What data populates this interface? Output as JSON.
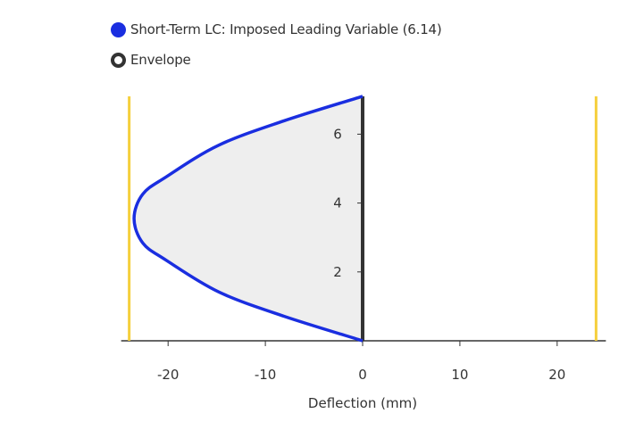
{
  "chart_data": {
    "type": "area",
    "xlabel": "Deflection (mm)",
    "ylabel": "",
    "xlim": [
      -24,
      24
    ],
    "ylim": [
      0,
      7.1
    ],
    "x_ticks": [
      -20,
      -10,
      0,
      10,
      20
    ],
    "y_ticks": [
      2,
      4,
      6
    ],
    "legend": {
      "placement": "top-left",
      "entries": [
        {
          "name": "Short-Term LC: Imposed Leading Variable (6.14)",
          "color": "#1a2ee0",
          "marker": "filled-circle"
        },
        {
          "name": "Envelope",
          "color": "#333333",
          "marker": "ring"
        }
      ]
    },
    "series": [
      {
        "name": "Short-Term LC: Imposed Leading Variable (6.14)",
        "color": "#1a2ee0",
        "fill": "#eeeeee",
        "x": [
          0,
          -8.05,
          -14.8,
          -20.2,
          -22.6,
          -23.5,
          -22.6,
          -20.2,
          -14.8,
          -8.05,
          0
        ],
        "y": [
          0,
          0.71,
          1.42,
          2.34,
          2.84,
          3.55,
          4.26,
          4.76,
          5.68,
          6.39,
          7.1
        ]
      },
      {
        "name": "Envelope",
        "color": "#333333",
        "x": [
          0,
          0
        ],
        "y": [
          0,
          7.1
        ]
      }
    ],
    "limit_lines": {
      "color": "#f5cf3c",
      "x": [
        -24,
        24
      ]
    },
    "grid": false
  }
}
